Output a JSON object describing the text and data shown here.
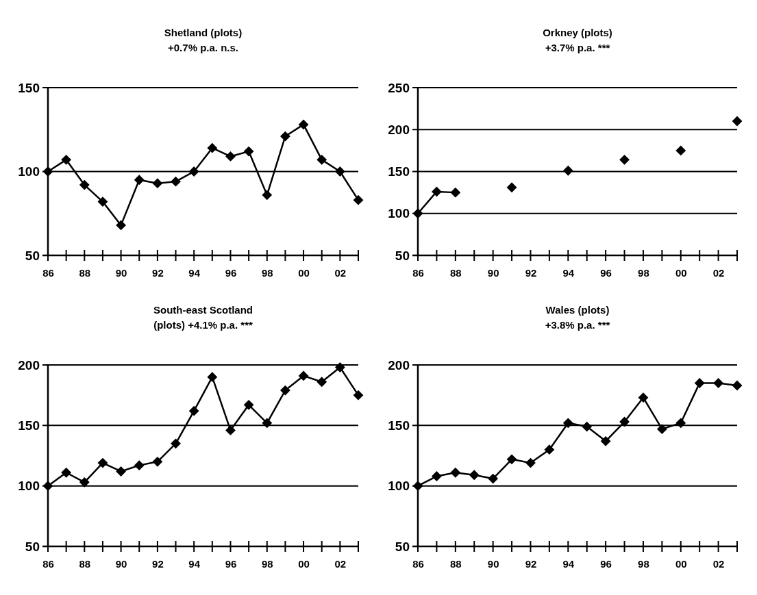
{
  "chart_data": [
    {
      "type": "line",
      "title": "Shetland (plots)",
      "subtitle": "+0.7% p.a. n.s.",
      "categories": [
        "86",
        null,
        "88",
        null,
        "90",
        null,
        "92",
        null,
        "94",
        null,
        "96",
        null,
        "98",
        null,
        "00",
        null,
        "02",
        null
      ],
      "series": [
        {
          "color": "#000000",
          "values": [
            100,
            107,
            92,
            82,
            68,
            95,
            93,
            94,
            100,
            114,
            109,
            112,
            86,
            121,
            128,
            107,
            100,
            83
          ]
        }
      ],
      "ylim": [
        50,
        150
      ],
      "yticks": [
        50,
        100,
        150
      ],
      "grid": "y",
      "marker": "diamond",
      "line_style": "solid"
    },
    {
      "type": "line",
      "title": "Orkney (plots)",
      "subtitle": "+3.7% p.a. ***",
      "categories": [
        "86",
        null,
        "88",
        null,
        "90",
        null,
        "92",
        null,
        "94",
        null,
        "96",
        null,
        "98",
        null,
        "00",
        null,
        "02",
        null
      ],
      "series": [
        {
          "color": "#000000",
          "values": [
            100,
            126,
            125,
            null,
            null,
            131,
            null,
            null,
            151,
            null,
            null,
            164,
            null,
            null,
            175,
            null,
            null,
            210
          ]
        }
      ],
      "ylim": [
        50,
        250
      ],
      "yticks": [
        50,
        100,
        150,
        200,
        250
      ],
      "grid": "y",
      "marker": "diamond",
      "line_style": "solid"
    },
    {
      "type": "line",
      "title": "South-east Scotland",
      "subtitle": "(plots) +4.1% p.a. ***",
      "categories": [
        "86",
        null,
        "88",
        null,
        "90",
        null,
        "92",
        null,
        "94",
        null,
        "96",
        null,
        "98",
        null,
        "00",
        null,
        "02",
        null
      ],
      "series": [
        {
          "color": "#000000",
          "values": [
            100,
            111,
            103,
            119,
            112,
            117,
            120,
            135,
            162,
            190,
            146,
            167,
            152,
            179,
            191,
            186,
            198,
            175
          ]
        }
      ],
      "ylim": [
        50,
        200
      ],
      "yticks": [
        50,
        100,
        150,
        200
      ],
      "grid": "y",
      "marker": "diamond",
      "line_style": "solid"
    },
    {
      "type": "line",
      "title": "Wales (plots)",
      "subtitle": "+3.8% p.a. ***",
      "categories": [
        "86",
        null,
        "88",
        null,
        "90",
        null,
        "92",
        null,
        "94",
        null,
        "96",
        null,
        "98",
        null,
        "00",
        null,
        "02",
        null
      ],
      "series": [
        {
          "color": "#000000",
          "values": [
            100,
            108,
            111,
            109,
            106,
            122,
            119,
            130,
            152,
            149,
            137,
            153,
            173,
            147,
            152,
            185,
            185,
            183
          ]
        }
      ],
      "ylim": [
        50,
        200
      ],
      "yticks": [
        50,
        100,
        150,
        200
      ],
      "grid": "y",
      "marker": "diamond",
      "line_style": "solid"
    }
  ]
}
